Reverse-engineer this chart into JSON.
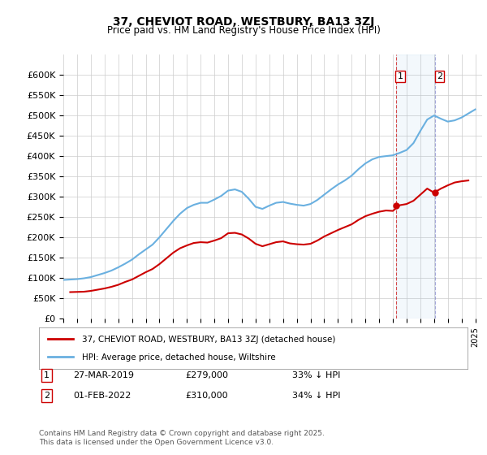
{
  "title": "37, CHEVIOT ROAD, WESTBURY, BA13 3ZJ",
  "subtitle": "Price paid vs. HM Land Registry's House Price Index (HPI)",
  "hpi_label": "HPI: Average price, detached house, Wiltshire",
  "property_label": "37, CHEVIOT ROAD, WESTBURY, BA13 3ZJ (detached house)",
  "footnote": "Contains HM Land Registry data © Crown copyright and database right 2025.\nThis data is licensed under the Open Government Licence v3.0.",
  "annotation1": {
    "num": "1",
    "date": "27-MAR-2019",
    "price": "£279,000",
    "pct": "33% ↓ HPI"
  },
  "annotation2": {
    "num": "2",
    "date": "01-FEB-2022",
    "price": "£310,000",
    "pct": "34% ↓ HPI"
  },
  "sale1_x": 2019.23,
  "sale1_y": 279000,
  "sale2_x": 2022.08,
  "sale2_y": 310000,
  "hpi_color": "#6ab0e0",
  "property_color": "#cc0000",
  "annotation_vline_color": "#cc0000",
  "annotation_vline_style": "--",
  "background_color": "#ffffff",
  "grid_color": "#cccccc",
  "ylim": [
    0,
    650000
  ],
  "xlim_start": 1995,
  "xlim_end": 2025.5,
  "hpi_data_x": [
    1995,
    1995.5,
    1996,
    1996.5,
    1997,
    1997.5,
    1998,
    1998.5,
    1999,
    1999.5,
    2000,
    2000.5,
    2001,
    2001.5,
    2002,
    2002.5,
    2003,
    2003.5,
    2004,
    2004.5,
    2005,
    2005.5,
    2006,
    2006.5,
    2007,
    2007.5,
    2008,
    2008.5,
    2009,
    2009.5,
    2010,
    2010.5,
    2011,
    2011.5,
    2012,
    2012.5,
    2013,
    2013.5,
    2014,
    2014.5,
    2015,
    2015.5,
    2016,
    2016.5,
    2017,
    2017.5,
    2018,
    2018.5,
    2019,
    2019.5,
    2020,
    2020.5,
    2021,
    2021.5,
    2022,
    2022.5,
    2023,
    2023.5,
    2024,
    2024.5,
    2025
  ],
  "hpi_data_y": [
    95000,
    96000,
    97000,
    99000,
    102000,
    107000,
    112000,
    118000,
    126000,
    135000,
    145000,
    158000,
    170000,
    182000,
    200000,
    220000,
    240000,
    258000,
    272000,
    280000,
    285000,
    285000,
    293000,
    302000,
    315000,
    318000,
    312000,
    295000,
    275000,
    270000,
    278000,
    285000,
    287000,
    283000,
    280000,
    278000,
    282000,
    292000,
    305000,
    318000,
    330000,
    340000,
    352000,
    368000,
    382000,
    392000,
    398000,
    400000,
    402000,
    408000,
    415000,
    432000,
    462000,
    490000,
    500000,
    492000,
    485000,
    488000,
    495000,
    505000,
    515000
  ],
  "property_data_x": [
    1995.5,
    1996,
    1996.5,
    1997,
    1997.5,
    1998,
    1998.5,
    1999,
    1999.5,
    2000,
    2000.5,
    2001,
    2001.5,
    2002,
    2002.5,
    2003,
    2003.5,
    2004,
    2004.5,
    2005,
    2005.5,
    2006,
    2006.5,
    2007,
    2007.5,
    2008,
    2008.5,
    2009,
    2009.5,
    2010,
    2010.5,
    2011,
    2011.5,
    2012,
    2012.5,
    2013,
    2013.5,
    2014,
    2014.5,
    2015,
    2015.5,
    2016,
    2016.5,
    2017,
    2017.5,
    2018,
    2018.5,
    2019,
    2019.5,
    2020,
    2020.5,
    2021,
    2021.5,
    2022,
    2022.5,
    2023,
    2023.5,
    2024,
    2024.5
  ],
  "property_data_y": [
    65000,
    65500,
    66000,
    68000,
    71000,
    74000,
    78000,
    83000,
    90000,
    96000,
    105000,
    114000,
    122000,
    134000,
    148000,
    162000,
    173000,
    180000,
    186000,
    188000,
    187000,
    192000,
    198000,
    210000,
    211000,
    207000,
    197000,
    184000,
    178000,
    183000,
    188000,
    190000,
    185000,
    183000,
    182000,
    184000,
    192000,
    202000,
    210000,
    218000,
    225000,
    232000,
    243000,
    252000,
    258000,
    263000,
    266000,
    265000,
    279000,
    282000,
    290000,
    305000,
    320000,
    310000,
    320000,
    328000,
    335000,
    338000,
    340000
  ]
}
